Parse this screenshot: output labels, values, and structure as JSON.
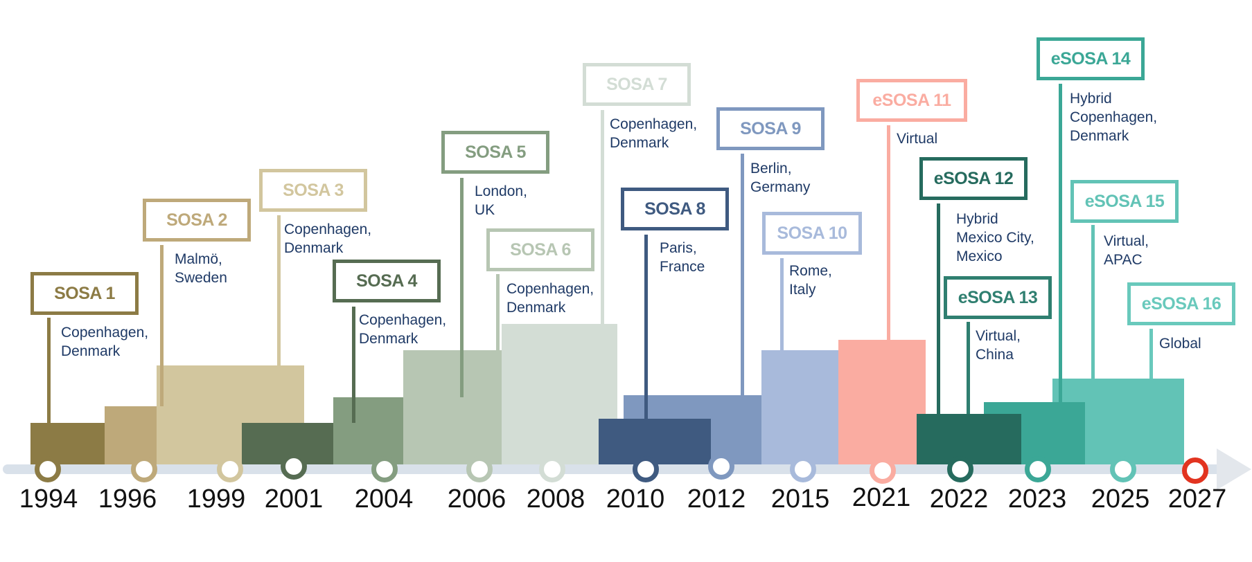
{
  "colors": {
    "sosa1": "#8c7b45",
    "sosa2": "#bea97a",
    "sosa3": "#d2c69e",
    "sosa4": "#566c52",
    "sosa5": "#849d80",
    "sosa6": "#b7c6b3",
    "sosa7": "#d3ddd5",
    "sosa8": "#3f5a80",
    "sosa9": "#7f98bf",
    "sosa10": "#a8badb",
    "esosa11": "#faaca1",
    "esosa12": "#266b5e",
    "esosa13": "#2f7f70",
    "esosa14": "#3ba796",
    "esosa15": "#62c3b6",
    "esosa16": "#69c9bc",
    "future": "#e23420"
  },
  "timeline": {
    "years": [
      "1994",
      "1996",
      "1999",
      "2001",
      "2004",
      "2006",
      "2008",
      "2010",
      "2012",
      "2015",
      "2021",
      "2022",
      "2023",
      "2025",
      "2027"
    ]
  },
  "events": [
    {
      "label": "SOSA 1",
      "location": "Copenhagen,\nDenmark"
    },
    {
      "label": "SOSA 2",
      "location": "Malmö,\nSweden"
    },
    {
      "label": "SOSA 3",
      "location": "Copenhagen,\nDenmark"
    },
    {
      "label": "SOSA 4",
      "location": "Copenhagen,\nDenmark"
    },
    {
      "label": "SOSA 5",
      "location": "London,\nUK"
    },
    {
      "label": "SOSA 6",
      "location": "Copenhagen,\nDenmark"
    },
    {
      "label": "SOSA 7",
      "location": "Copenhagen,\nDenmark"
    },
    {
      "label": "SOSA 8",
      "location": "Paris,\nFrance"
    },
    {
      "label": "SOSA 9",
      "location": "Berlin,\nGermany"
    },
    {
      "label": "SOSA 10",
      "location": "Rome,\nItaly"
    },
    {
      "label": "eSOSA 11",
      "location": "Virtual"
    },
    {
      "label": "eSOSA 12",
      "location": "Hybrid\nMexico City,\nMexico"
    },
    {
      "label": "eSOSA 13",
      "location": "Virtual,\nChina"
    },
    {
      "label": "eSOSA 14",
      "location": "Hybrid\nCopenhagen,\nDenmark"
    },
    {
      "label": "eSOSA 15",
      "location": "Virtual,\nAPAC"
    },
    {
      "label": "eSOSA 16",
      "location": "Global"
    }
  ]
}
